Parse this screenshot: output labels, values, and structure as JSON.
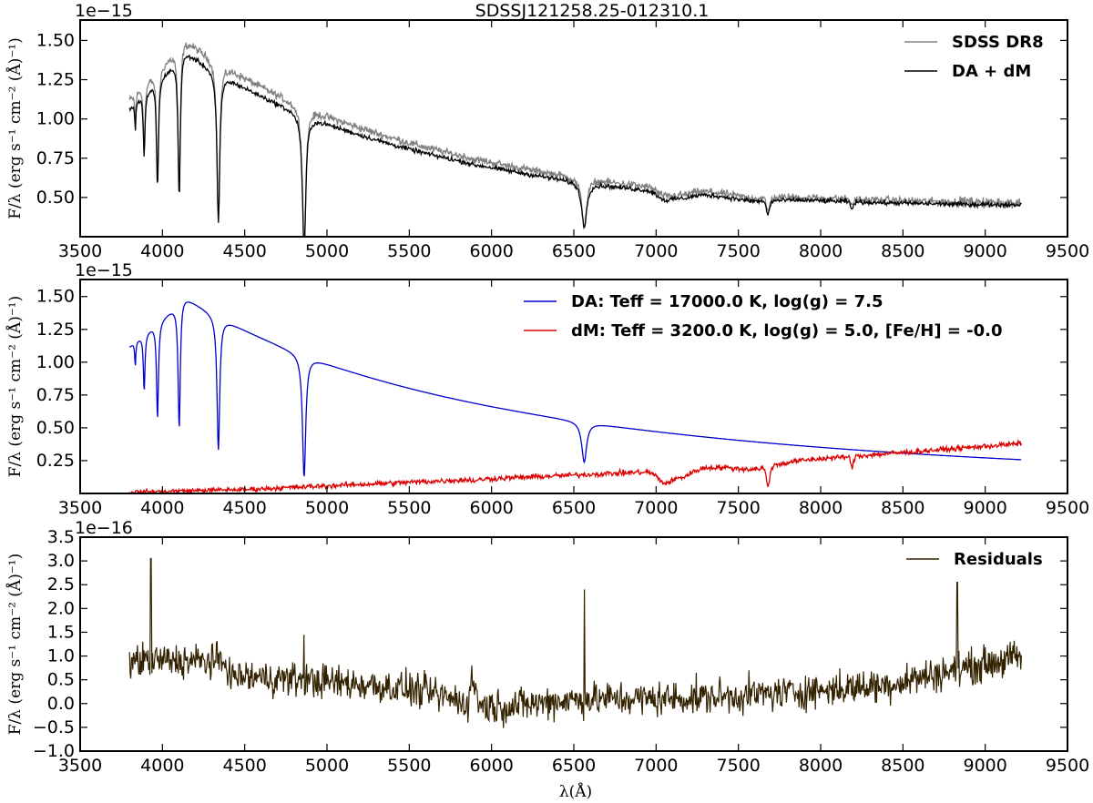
{
  "figure_title": "SDSSJ121258.25-012310.1",
  "x_axis_label": "λ(Å)",
  "chart_data": [
    {
      "type": "line",
      "panel": "observed vs model",
      "title": "SDSSJ121258.25-012310.1",
      "offset_label": "1e−15",
      "ylabel": "F/λ (erg s⁻¹ cm⁻² (Å)⁻¹)",
      "xlabel": "",
      "xlim": [
        3500,
        9500
      ],
      "ylim": [
        0.25,
        1.63
      ],
      "x_ticks": [
        "3500",
        "4000",
        "4500",
        "5000",
        "5500",
        "6000",
        "6500",
        "7000",
        "7500",
        "8000",
        "8500",
        "9000",
        "9500"
      ],
      "y_ticks": [
        "0.50",
        "0.75",
        "1.00",
        "1.25",
        "1.50"
      ],
      "y_tick_values": [
        0.5,
        0.75,
        1.0,
        1.25,
        1.5
      ],
      "legend_position": "top-right",
      "series": [
        {
          "name": "SDSS DR8",
          "color": "#808080",
          "model": "obs",
          "x_range": [
            3800,
            9220
          ]
        },
        {
          "name": "DA + dM",
          "color": "#000000",
          "model": "fit",
          "x_range": [
            3800,
            9220
          ]
        }
      ]
    },
    {
      "type": "line",
      "panel": "components",
      "title": "",
      "offset_label": "1e−15",
      "ylabel": "F/λ (erg s⁻¹ cm⁻² (Å)⁻¹)",
      "xlabel": "",
      "xlim": [
        3500,
        9500
      ],
      "ylim": [
        0.0,
        1.63
      ],
      "x_ticks": [
        "3500",
        "4000",
        "4500",
        "5000",
        "5500",
        "6000",
        "6500",
        "7000",
        "7500",
        "8000",
        "8500",
        "9000",
        "9500"
      ],
      "y_ticks": [
        "0.25",
        "0.50",
        "0.75",
        "1.00",
        "1.25",
        "1.50"
      ],
      "y_tick_values": [
        0.25,
        0.5,
        0.75,
        1.0,
        1.25,
        1.5
      ],
      "legend_position": "top-right",
      "series": [
        {
          "name": "DA: Teff = 17000.0 K, log(g) = 7.5",
          "color": "#0000cc",
          "model": "wd",
          "x_range": [
            3800,
            9220
          ]
        },
        {
          "name": "dM: Teff = 3200.0 K, log(g) = 5.0, [Fe/H] = -0.0",
          "color": "#dd0000",
          "model": "dm",
          "x_range": [
            3800,
            9220
          ]
        }
      ]
    },
    {
      "type": "line",
      "panel": "residuals",
      "title": "",
      "offset_label": "1e−16",
      "ylabel": "F/λ (erg s⁻¹ cm⁻² (Å)⁻¹)",
      "xlabel": "λ(Å)",
      "xlim": [
        3500,
        9500
      ],
      "ylim": [
        -1.0,
        3.5
      ],
      "x_ticks": [
        "3500",
        "4000",
        "4500",
        "5000",
        "5500",
        "6000",
        "6500",
        "7000",
        "7500",
        "8000",
        "8500",
        "9000",
        "9500"
      ],
      "y_ticks": [
        "−1.0",
        "−0.5",
        "0.0",
        "0.5",
        "1.0",
        "1.5",
        "2.0",
        "2.5",
        "3.0",
        "3.5"
      ],
      "y_tick_values": [
        -1.0,
        -0.5,
        0.0,
        0.5,
        1.0,
        1.5,
        2.0,
        2.5,
        3.0,
        3.5
      ],
      "legend_position": "top-right",
      "series": [
        {
          "name": "Residuals",
          "color": "#332200",
          "model": "resid",
          "x_range": [
            3800,
            9220
          ]
        }
      ]
    }
  ]
}
